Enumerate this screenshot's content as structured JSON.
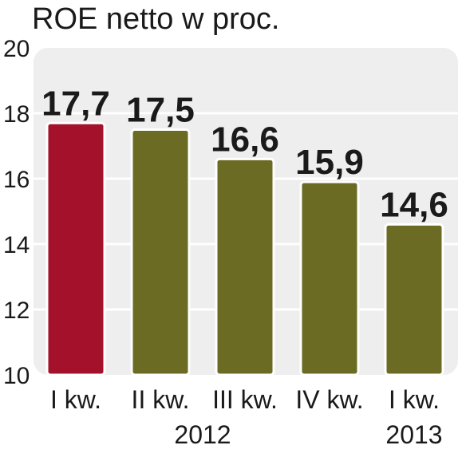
{
  "chart_data": {
    "type": "bar",
    "title": "ROE netto w proc.",
    "categories": [
      "I kw.",
      "II kw.",
      "III kw.",
      "IV kw.",
      "I kw."
    ],
    "year_labels": [
      "2012",
      "2013"
    ],
    "values": [
      17.7,
      17.5,
      16.6,
      15.9,
      14.6
    ],
    "value_labels": [
      "17,7",
      "17,5",
      "16,6",
      "15,9",
      "14,6"
    ],
    "ylim": [
      10,
      20
    ],
    "yticks": [
      10,
      12,
      14,
      16,
      18,
      20
    ],
    "grid": true,
    "xlabel": "",
    "ylabel": "",
    "colors": {
      "highlight": "#a3112a",
      "bar": "#6b6b23",
      "panel": "#eeeeee",
      "grid": "#ffffff"
    },
    "highlight_index": 0
  }
}
